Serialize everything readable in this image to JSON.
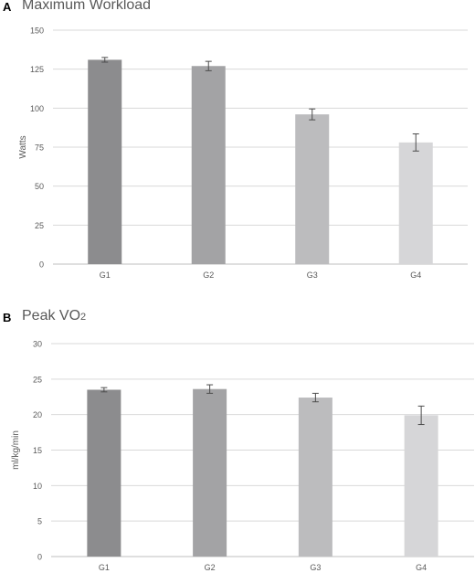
{
  "chart_data": [
    {
      "type": "bar",
      "panel": "A",
      "title": "Maximum Workload",
      "ylabel": "Watts",
      "categories": [
        "G1",
        "G2",
        "G3",
        "G4"
      ],
      "values": [
        131,
        127,
        96,
        78
      ],
      "errors": [
        1.5,
        3,
        3.5,
        5.5
      ],
      "colors": [
        "#8c8c8e",
        "#a3a3a5",
        "#bcbcbe",
        "#d6d6d8"
      ],
      "yticks": [
        0,
        25,
        50,
        75,
        100,
        125,
        150
      ],
      "ylim": [
        0,
        150
      ],
      "grid": true
    },
    {
      "type": "bar",
      "panel": "B",
      "title": "Peak VO",
      "title_sub": "2",
      "ylabel": "ml/kg/min",
      "categories": [
        "G1",
        "G2",
        "G3",
        "G4"
      ],
      "values": [
        23.5,
        23.6,
        22.4,
        19.9
      ],
      "errors": [
        0.3,
        0.6,
        0.6,
        1.3
      ],
      "colors": [
        "#8c8c8e",
        "#a3a3a5",
        "#bcbcbe",
        "#d6d6d8"
      ],
      "yticks": [
        0,
        5,
        10,
        15,
        20,
        25,
        30
      ],
      "ylim": [
        0,
        30
      ],
      "grid": true
    }
  ]
}
